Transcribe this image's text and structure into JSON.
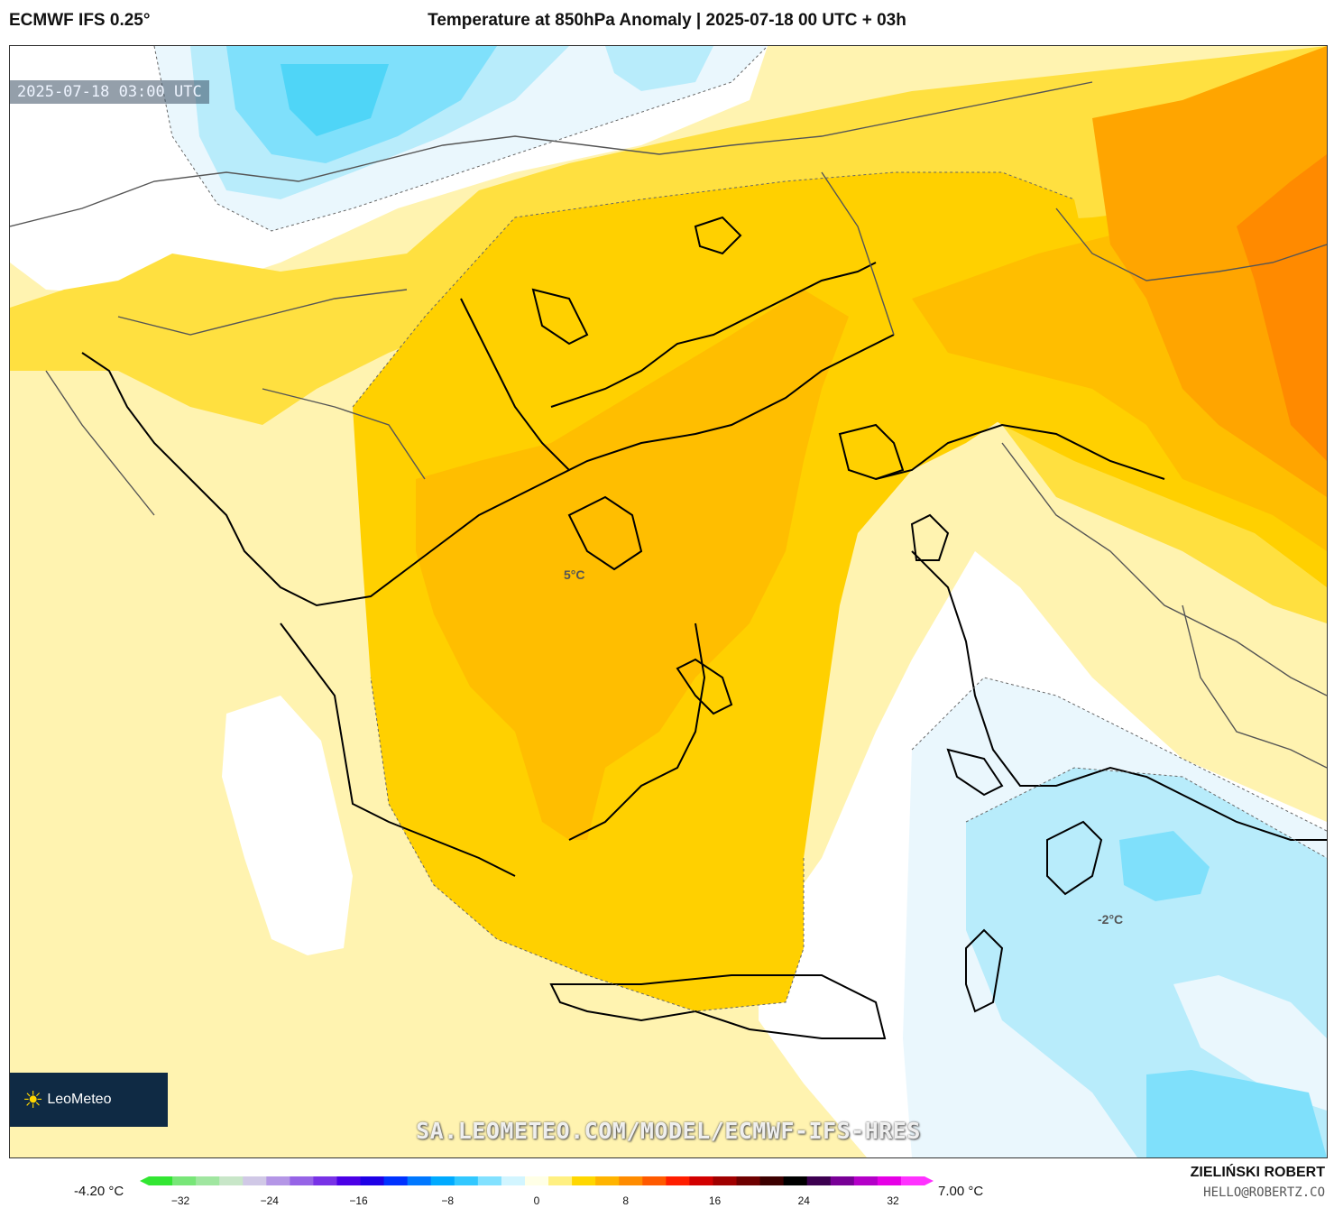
{
  "header": {
    "model": "ECMWF IFS 0.25°",
    "title": "Temperature at 850hPa Anomaly | 2025-07-18 00 UTC + 03h"
  },
  "map": {
    "valid_time": "2025-07-18 03:00 UTC",
    "logo_text": "LeoMeteo",
    "watermark": "SA.LEOMETEO.COM/MODEL/ECMWF-IFS-HRES",
    "contour_labels": [
      "5°C",
      "-2°C"
    ],
    "colors": {
      "pale_yellow": "#fff3b0",
      "yellow": "#ffe040",
      "gold": "#ffd000",
      "amber": "#ffbe00",
      "orange": "#ffa500",
      "deep_orange": "#ff8a00",
      "pale_blue": "#eaf7fd",
      "light_blue": "#b8ecfb",
      "sky_blue": "#7fe0fb",
      "cyan": "#4fd5f7"
    }
  },
  "legend": {
    "min_value": "-4.20 °C",
    "max_value": "7.00 °C",
    "ticks": [
      "−32",
      "−24",
      "−16",
      "−8",
      "0",
      "8",
      "16",
      "24",
      "32"
    ],
    "stops": [
      "#32e632",
      "#78e678",
      "#a0e6a0",
      "#c8e6c8",
      "#d0c8e6",
      "#b496e6",
      "#9664e6",
      "#7832e6",
      "#4b00e6",
      "#1e00e6",
      "#0032ff",
      "#0078ff",
      "#00aaff",
      "#32c8ff",
      "#82e1ff",
      "#d2f5ff",
      "#ffffe6",
      "#fff082",
      "#ffd700",
      "#ffb400",
      "#ff8c00",
      "#ff5a00",
      "#ff1e00",
      "#d20000",
      "#a00000",
      "#6e0000",
      "#3c0000",
      "#000000",
      "#3c0050",
      "#780096",
      "#b400c8",
      "#e600e6",
      "#ff32ff"
    ]
  },
  "author": {
    "name": "ZIELIŃSKI ROBERT",
    "email": "HELLO@ROBERTZ.CO"
  }
}
